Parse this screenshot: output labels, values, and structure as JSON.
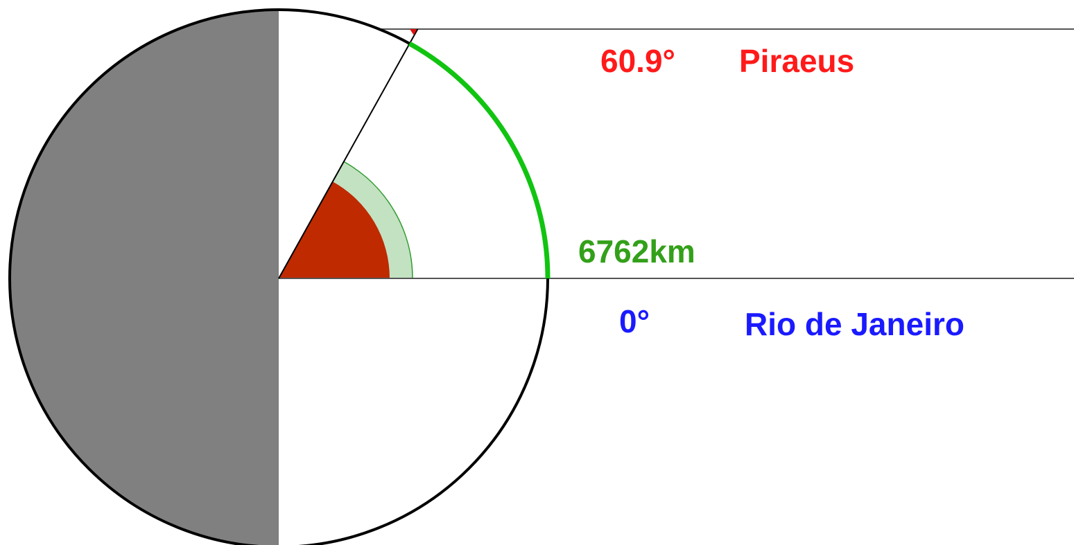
{
  "colors": {
    "background": "#ffffff",
    "night_side": "#808080",
    "outline": "#000000",
    "angle_sector": "#bf2a00",
    "arc_sector": "#c2e2c2",
    "great_circle_arc": "#11c411",
    "piraeus": "#ff1a1a",
    "rio": "#1a1aff",
    "distance": "#33a01a"
  },
  "diagram": {
    "angle_degrees": 60.9,
    "labels": {
      "piraeus_angle": "60.9°",
      "piraeus_name": "Piraeus",
      "distance": "6762km",
      "rio_angle": "0°",
      "rio_name": "Rio de Janeiro"
    }
  }
}
